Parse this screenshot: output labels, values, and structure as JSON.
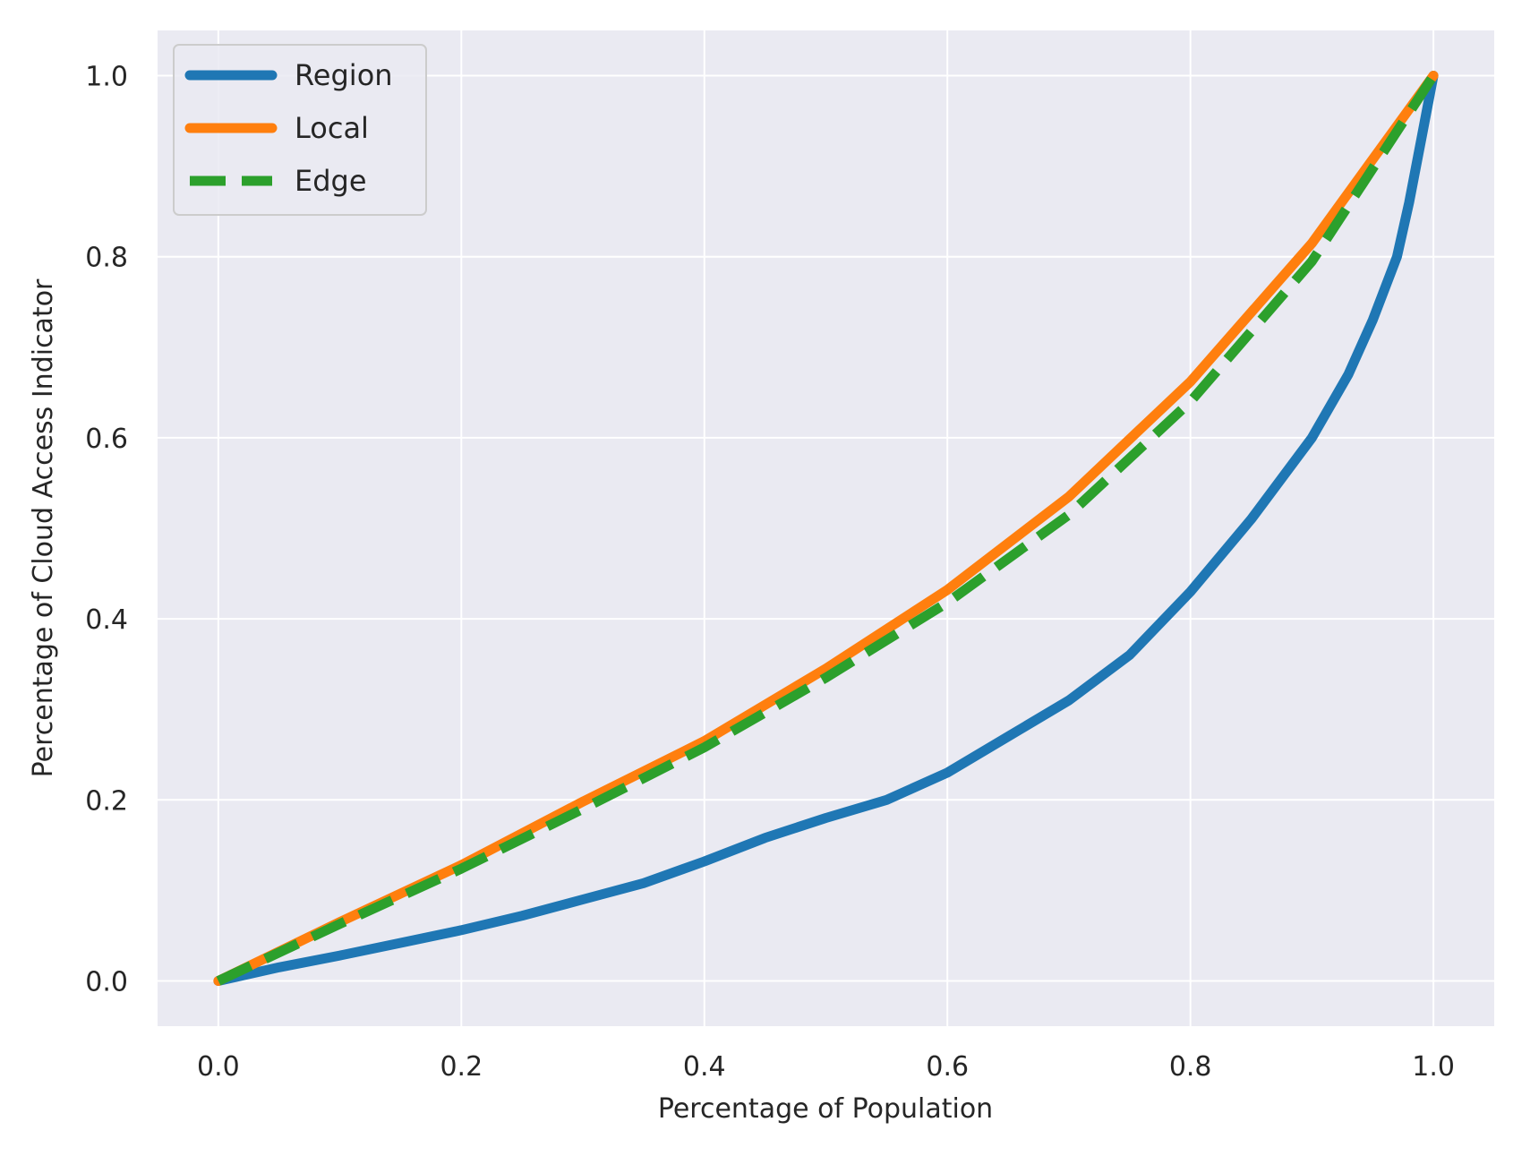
{
  "chart_data": {
    "type": "line",
    "title": "",
    "xlabel": "Percentage of Population",
    "ylabel": "Percentage of Cloud Access Indicator",
    "xlim": [
      -0.05,
      1.05
    ],
    "ylim": [
      -0.05,
      1.05
    ],
    "x_ticks": [
      0.0,
      0.2,
      0.4,
      0.6,
      0.8,
      1.0
    ],
    "y_ticks": [
      0.0,
      0.2,
      0.4,
      0.6,
      0.8,
      1.0
    ],
    "x_tick_labels": [
      "0.0",
      "0.2",
      "0.4",
      "0.6",
      "0.8",
      "1.0"
    ],
    "y_tick_labels": [
      "0.0",
      "0.2",
      "0.4",
      "0.6",
      "0.8",
      "1.0"
    ],
    "grid": true,
    "legend_position": "top-left",
    "series": [
      {
        "name": "Region",
        "color": "#1f77b4",
        "style": "solid",
        "x": [
          0.0,
          0.05,
          0.1,
          0.15,
          0.2,
          0.25,
          0.3,
          0.35,
          0.4,
          0.45,
          0.5,
          0.55,
          0.6,
          0.65,
          0.7,
          0.75,
          0.8,
          0.85,
          0.9,
          0.93,
          0.95,
          0.97,
          0.98,
          0.99,
          1.0
        ],
        "y": [
          0.0,
          0.015,
          0.028,
          0.042,
          0.056,
          0.072,
          0.09,
          0.108,
          0.132,
          0.158,
          0.18,
          0.2,
          0.23,
          0.27,
          0.31,
          0.36,
          0.43,
          0.51,
          0.6,
          0.67,
          0.73,
          0.8,
          0.86,
          0.93,
          1.0
        ]
      },
      {
        "name": "Local",
        "color": "#ff7f0e",
        "style": "solid",
        "x": [
          0.0,
          0.1,
          0.2,
          0.3,
          0.4,
          0.5,
          0.6,
          0.7,
          0.8,
          0.9,
          1.0
        ],
        "y": [
          0.0,
          0.065,
          0.128,
          0.198,
          0.265,
          0.345,
          0.432,
          0.535,
          0.662,
          0.815,
          1.0
        ]
      },
      {
        "name": "Edge",
        "color": "#2ca02c",
        "style": "dashed",
        "x": [
          0.0,
          0.1,
          0.2,
          0.3,
          0.4,
          0.5,
          0.6,
          0.7,
          0.8,
          0.9,
          1.0
        ],
        "y": [
          0.0,
          0.063,
          0.124,
          0.19,
          0.258,
          0.335,
          0.418,
          0.515,
          0.64,
          0.795,
          1.0
        ]
      }
    ]
  }
}
